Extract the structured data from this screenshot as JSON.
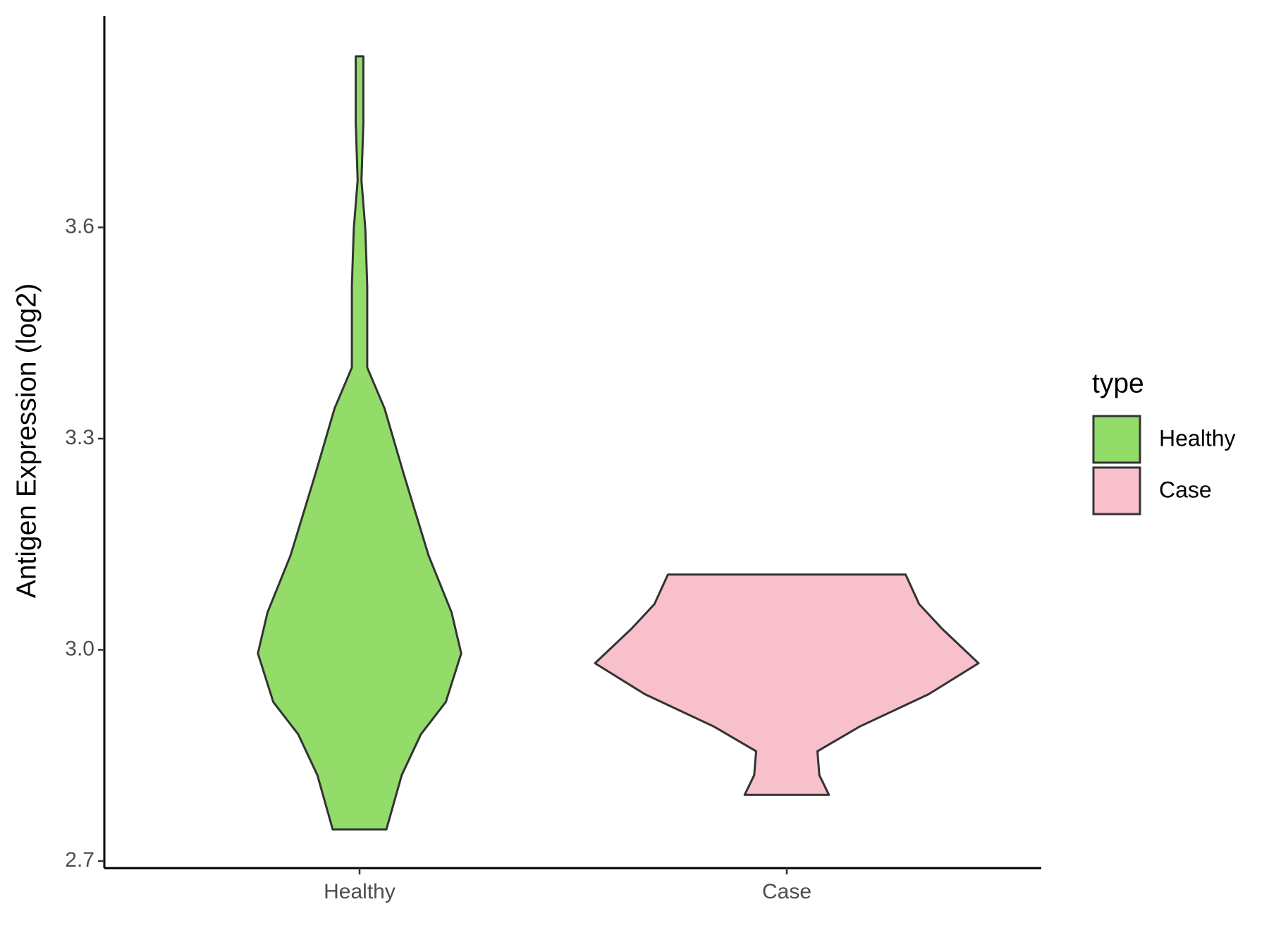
{
  "chart_data": {
    "type": "violin",
    "y_label": "Antigen Expression (log2)",
    "legend_title": "type",
    "categories": [
      "Healthy",
      "Case"
    ],
    "ylim": [
      2.69,
      3.9
    ],
    "yticks": [
      2.7,
      {
        "value": 3,
        "label": "3.0"
      },
      3.3,
      3.6
    ],
    "series": [
      {
        "name": "Healthy",
        "color": "#93dc6a",
        "values": [
          3.843,
          3.748,
          3.667,
          3.598,
          3.517,
          3.401,
          3.343,
          3.25,
          3.134,
          3.053,
          2.995,
          2.926,
          2.88,
          2.822,
          2.745
        ],
        "widths": [
          0.02,
          0.02,
          0.01,
          0.03,
          0.04,
          0.04,
          0.13,
          0.23,
          0.36,
          0.48,
          0.53,
          0.45,
          0.32,
          0.22,
          0.14
        ]
      },
      {
        "name": "Case",
        "color": "#f8c0cb",
        "values": [
          3.107,
          3.065,
          3.03,
          2.981,
          2.937,
          2.891,
          2.856,
          2.822,
          2.794
        ],
        "widths": [
          0.62,
          0.69,
          0.81,
          1.0,
          0.74,
          0.38,
          0.16,
          0.17,
          0.22
        ]
      }
    ],
    "legend": "right"
  }
}
